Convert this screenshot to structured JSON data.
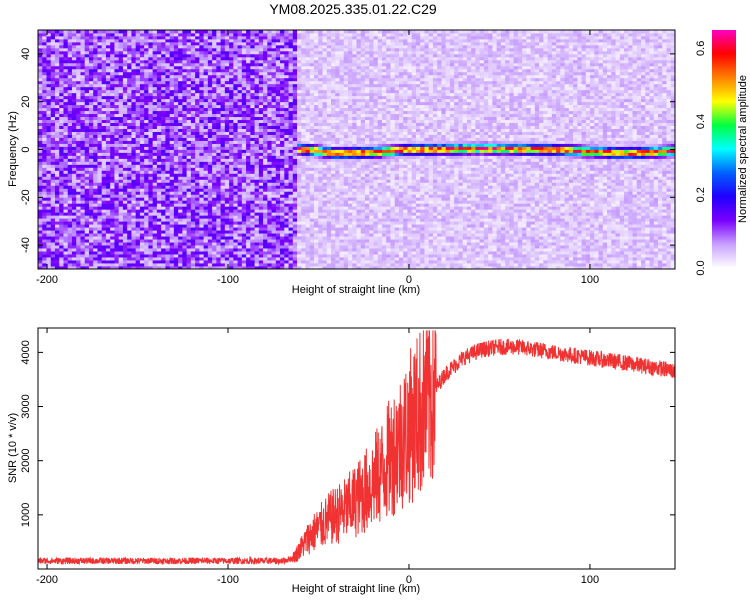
{
  "title": "YM08.2025.335.01.22.C29",
  "chart_data": [
    {
      "type": "heatmap",
      "xlabel": "Height of straight line (km)",
      "ylabel": "Frequency (Hz)",
      "xlim": [
        -205,
        147
      ],
      "ylim": [
        -50,
        50
      ],
      "xticks": [
        -200,
        -100,
        0,
        100
      ],
      "yticks": [
        -40,
        -20,
        0,
        20,
        40
      ],
      "colorbar": {
        "label": "Normalized spectral amplitude",
        "range": [
          0,
          0.65
        ],
        "ticks": [
          0.0,
          0.2,
          0.4,
          0.6
        ],
        "colormap": [
          "#ffffff",
          "#c8a0ff",
          "#7a00ff",
          "#2000ff",
          "#0060ff",
          "#00ffff",
          "#00ff40",
          "#ffff00",
          "#ff8000",
          "#ff0000",
          "#ff00c0"
        ]
      },
      "signal_band": {
        "x_start": -62,
        "x_end": 147,
        "frequency_points": [
          [
            -62,
            0.5
          ],
          [
            -40,
            -1.5
          ],
          [
            -20,
            -1
          ],
          [
            0,
            0
          ],
          [
            40,
            0.5
          ],
          [
            80,
            0
          ],
          [
            120,
            -1.5
          ],
          [
            147,
            -0.5
          ]
        ],
        "peak_amplitude": 0.65
      },
      "noise_regions": [
        {
          "x_start": -205,
          "x_end": -62,
          "amplitude": 0.12
        },
        {
          "x_start": -62,
          "x_end": 147,
          "amplitude": 0.05
        }
      ]
    },
    {
      "type": "line",
      "xlabel": "Height of straight line (km)",
      "ylabel": "SNR (10 * v/v)",
      "xlim": [
        -205,
        147
      ],
      "ylim": [
        0,
        4450
      ],
      "xticks": [
        -200,
        -100,
        0,
        100
      ],
      "yticks": [
        1000,
        2000,
        3000,
        4000
      ],
      "color": "#f03232",
      "series": [
        {
          "x": [
            -205,
            -150,
            -100,
            -70,
            -64,
            -55,
            -45,
            -35,
            -25,
            -15,
            -8,
            0,
            10,
            20,
            30,
            40,
            50,
            60,
            70,
            80,
            90,
            100,
            110,
            120,
            130,
            140,
            147
          ],
          "y": [
            150,
            150,
            150,
            150,
            200,
            600,
            900,
            1100,
            1400,
            1800,
            2200,
            2600,
            3100,
            3600,
            3900,
            4050,
            4100,
            4100,
            4050,
            4000,
            3950,
            3900,
            3850,
            3800,
            3750,
            3700,
            3650
          ]
        }
      ]
    }
  ]
}
